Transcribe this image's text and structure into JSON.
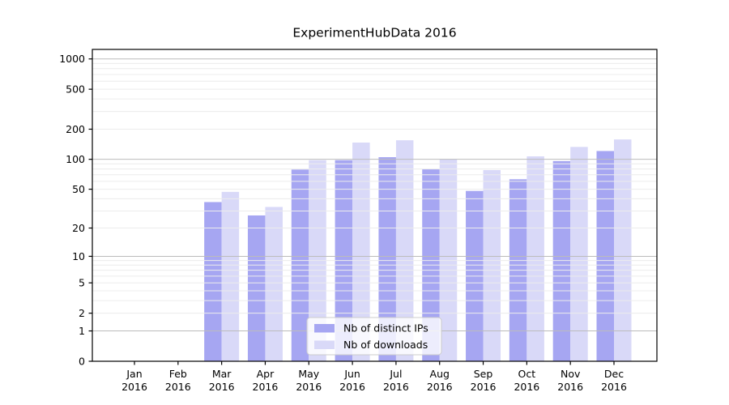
{
  "page": {
    "background": "#ffffff"
  },
  "chart_data": {
    "type": "bar",
    "title": "ExperimentHubData 2016",
    "months": [
      "Jan",
      "Feb",
      "Mar",
      "Apr",
      "May",
      "Jun",
      "Jul",
      "Aug",
      "Sep",
      "Oct",
      "Nov",
      "Dec"
    ],
    "year": "2016",
    "series": [
      {
        "name": "Nb of distinct IPs",
        "color": "#a6a6f2",
        "values": [
          0,
          0,
          37,
          27,
          79,
          98,
          105,
          80,
          48,
          63,
          96,
          121
        ]
      },
      {
        "name": "Nb of downloads",
        "color": "#d9d9f8",
        "values": [
          0,
          0,
          47,
          33,
          98,
          147,
          155,
          100,
          78,
          107,
          133,
          158
        ]
      }
    ],
    "yscale": "log10(1+v)",
    "yticks": [
      1000,
      500,
      200,
      100,
      50,
      20,
      10,
      5,
      2,
      1,
      0
    ],
    "ylim": [
      0,
      1240
    ],
    "grid": "horizontal",
    "grid_major_color": "#bcbcbc",
    "grid_minor_color": "#ececec",
    "axis_color": "#000000",
    "legend_position": "lower-center",
    "legend_frame_color": "#cccccc"
  }
}
